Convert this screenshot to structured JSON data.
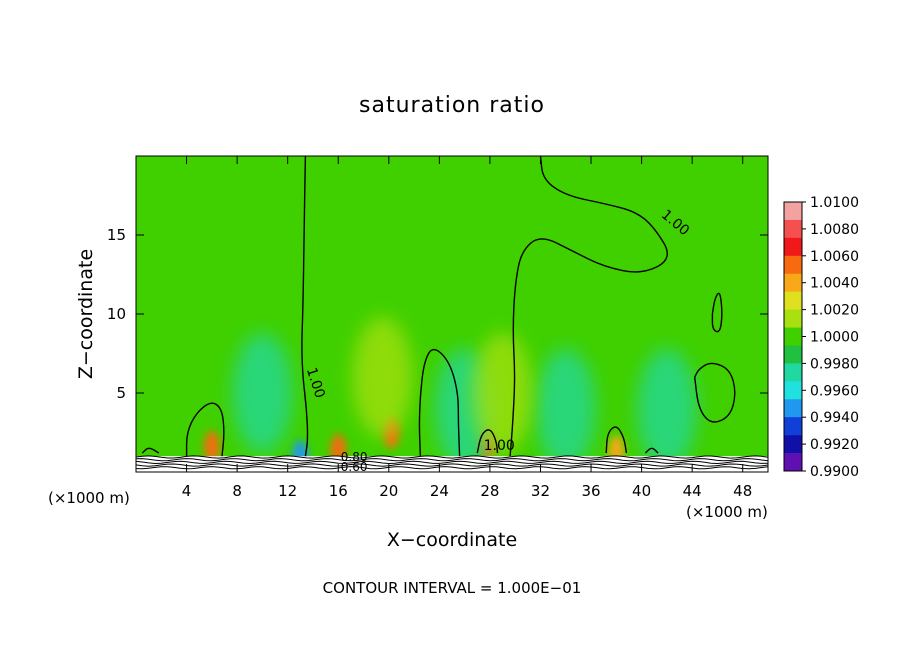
{
  "chart_data": {
    "type": "heatmap",
    "title": "saturation ratio",
    "xlabel": "X−coordinate",
    "ylabel": "Z−coordinate",
    "x_unit_left": "(×1000 m)",
    "x_unit_right": "(×1000 m)",
    "footer": "CONTOUR INTERVAL = 1.000E−01",
    "xlim": [
      0,
      50
    ],
    "ylim": [
      0,
      20
    ],
    "x_ticks": [
      4,
      8,
      12,
      16,
      20,
      24,
      28,
      32,
      36,
      40,
      44,
      48
    ],
    "y_ticks": [
      5,
      10,
      15
    ],
    "colorbar": {
      "min": 0.99,
      "max": 1.01,
      "labels": [
        "1.0100",
        "1.0080",
        "1.0060",
        "1.0040",
        "1.0020",
        "1.0000",
        "0.9980",
        "0.9960",
        "0.9940",
        "0.9920",
        "0.9900"
      ],
      "colors": [
        "#f3a2a2",
        "#f55050",
        "#f01818",
        "#f86a10",
        "#f8a818",
        "#e0e020",
        "#a8e010",
        "#40d000",
        "#20c040",
        "#20d8a0",
        "#20e0e0",
        "#2098f0",
        "#1040d8",
        "#1010a8",
        "#6010b0"
      ]
    },
    "background_value": 1.0005,
    "cells": [
      {
        "x": 6,
        "z": 1.6,
        "value": 1.006
      },
      {
        "x": 16,
        "z": 1.4,
        "value": 1.005
      },
      {
        "x": 20.2,
        "z": 2.5,
        "value": 1.005
      },
      {
        "x": 27.8,
        "z": 1.8,
        "value": 1.005
      },
      {
        "x": 38,
        "z": 1.3,
        "value": 1.004
      },
      {
        "x": 10,
        "z": 5,
        "value": 0.9975
      },
      {
        "x": 26,
        "z": 4,
        "value": 0.9978
      },
      {
        "x": 34,
        "z": 4,
        "value": 0.9975
      },
      {
        "x": 42,
        "z": 4,
        "value": 0.998
      },
      {
        "x": 19.5,
        "z": 6,
        "value": 1.002
      },
      {
        "x": 29,
        "z": 5,
        "value": 1.0015
      },
      {
        "x": 13,
        "z": 1,
        "value": 0.995
      }
    ],
    "contours": [
      {
        "value": "1.00",
        "label_x": 13.5,
        "label_z": 6.5,
        "label_angle": 72,
        "points": [
          [
            13.4,
            20
          ],
          [
            13.3,
            15
          ],
          [
            13.2,
            10
          ],
          [
            13.1,
            8
          ],
          [
            13.2,
            6
          ],
          [
            13.5,
            4
          ],
          [
            13.6,
            2
          ],
          [
            13.4,
            1
          ]
        ]
      },
      {
        "value": "1.00",
        "label_x": 41.5,
        "label_z": 16.2,
        "label_angle": 40,
        "points": [
          [
            32,
            20
          ],
          [
            32.2,
            18.5
          ],
          [
            34,
            17.5
          ],
          [
            37,
            17
          ],
          [
            39.5,
            16.5
          ],
          [
            41,
            15.5
          ],
          [
            42.5,
            13.5
          ],
          [
            40,
            12.5
          ],
          [
            37,
            13
          ],
          [
            34.5,
            14
          ],
          [
            32,
            15
          ],
          [
            30.5,
            14
          ],
          [
            30,
            12
          ],
          [
            29.8,
            9
          ],
          [
            30,
            6
          ],
          [
            29.8,
            3
          ],
          [
            29.6,
            1
          ]
        ]
      },
      {
        "value": "1.00",
        "label_x": 0,
        "label_z": 0,
        "label_angle": 0,
        "points": [
          [
            22.5,
            1
          ],
          [
            22.4,
            3
          ],
          [
            22.5,
            5
          ],
          [
            22.8,
            7
          ],
          [
            23.5,
            8
          ],
          [
            24.8,
            7
          ],
          [
            25.5,
            5
          ],
          [
            25.5,
            3
          ],
          [
            25.6,
            1
          ]
        ]
      },
      {
        "value": "1.00",
        "label_x": 0,
        "label_z": 0,
        "label_angle": 0,
        "points": [
          [
            4,
            1
          ],
          [
            4,
            2.5
          ],
          [
            4.8,
            3.8
          ],
          [
            6,
            4.5
          ],
          [
            6.8,
            4
          ],
          [
            7,
            2.5
          ],
          [
            6.8,
            1
          ]
        ]
      },
      {
        "value": "1.00",
        "label_x": 0,
        "label_z": 0,
        "label_angle": 0,
        "points": [
          [
            44.2,
            6
          ],
          [
            44.5,
            4
          ],
          [
            45.5,
            3
          ],
          [
            47,
            3.5
          ],
          [
            47.5,
            5
          ],
          [
            47,
            6.5
          ],
          [
            45.5,
            7
          ],
          [
            44.5,
            6.5
          ],
          [
            44.2,
            6
          ]
        ]
      },
      {
        "value": "1.00",
        "label_x": 0,
        "label_z": 0,
        "label_angle": 0,
        "points": [
          [
            45.6,
            10
          ],
          [
            45.8,
            11
          ],
          [
            46.2,
            11.5
          ],
          [
            46.4,
            10
          ],
          [
            46.2,
            8.8
          ],
          [
            45.6,
            9
          ],
          [
            45.6,
            10
          ]
        ]
      },
      {
        "value": "1.00",
        "label_x": 27.5,
        "label_z": 1.4,
        "label_angle": 0,
        "points": [
          [
            27,
            1.2
          ],
          [
            27.3,
            2.4
          ],
          [
            28,
            2.8
          ],
          [
            28.5,
            2
          ],
          [
            28.6,
            1.2
          ]
        ]
      },
      {
        "value": "1.00",
        "label_x": 0,
        "label_z": 0,
        "label_angle": 0,
        "points": [
          [
            37.2,
            1.2
          ],
          [
            37.3,
            2.5
          ],
          [
            38,
            3
          ],
          [
            38.6,
            2.2
          ],
          [
            38.8,
            1.2
          ]
        ]
      },
      {
        "value": "1.00",
        "label_x": 0,
        "label_z": 0,
        "label_angle": 0,
        "points": [
          [
            0.5,
            1.2
          ],
          [
            1,
            1.6
          ],
          [
            1.8,
            1.2
          ]
        ]
      },
      {
        "value": "1.00",
        "label_x": 0,
        "label_z": 0,
        "label_angle": 0,
        "points": [
          [
            40.3,
            1.2
          ],
          [
            40.8,
            1.6
          ],
          [
            41.3,
            1.2
          ]
        ]
      }
    ],
    "surface_labels": [
      "0.80",
      "0.60"
    ]
  }
}
